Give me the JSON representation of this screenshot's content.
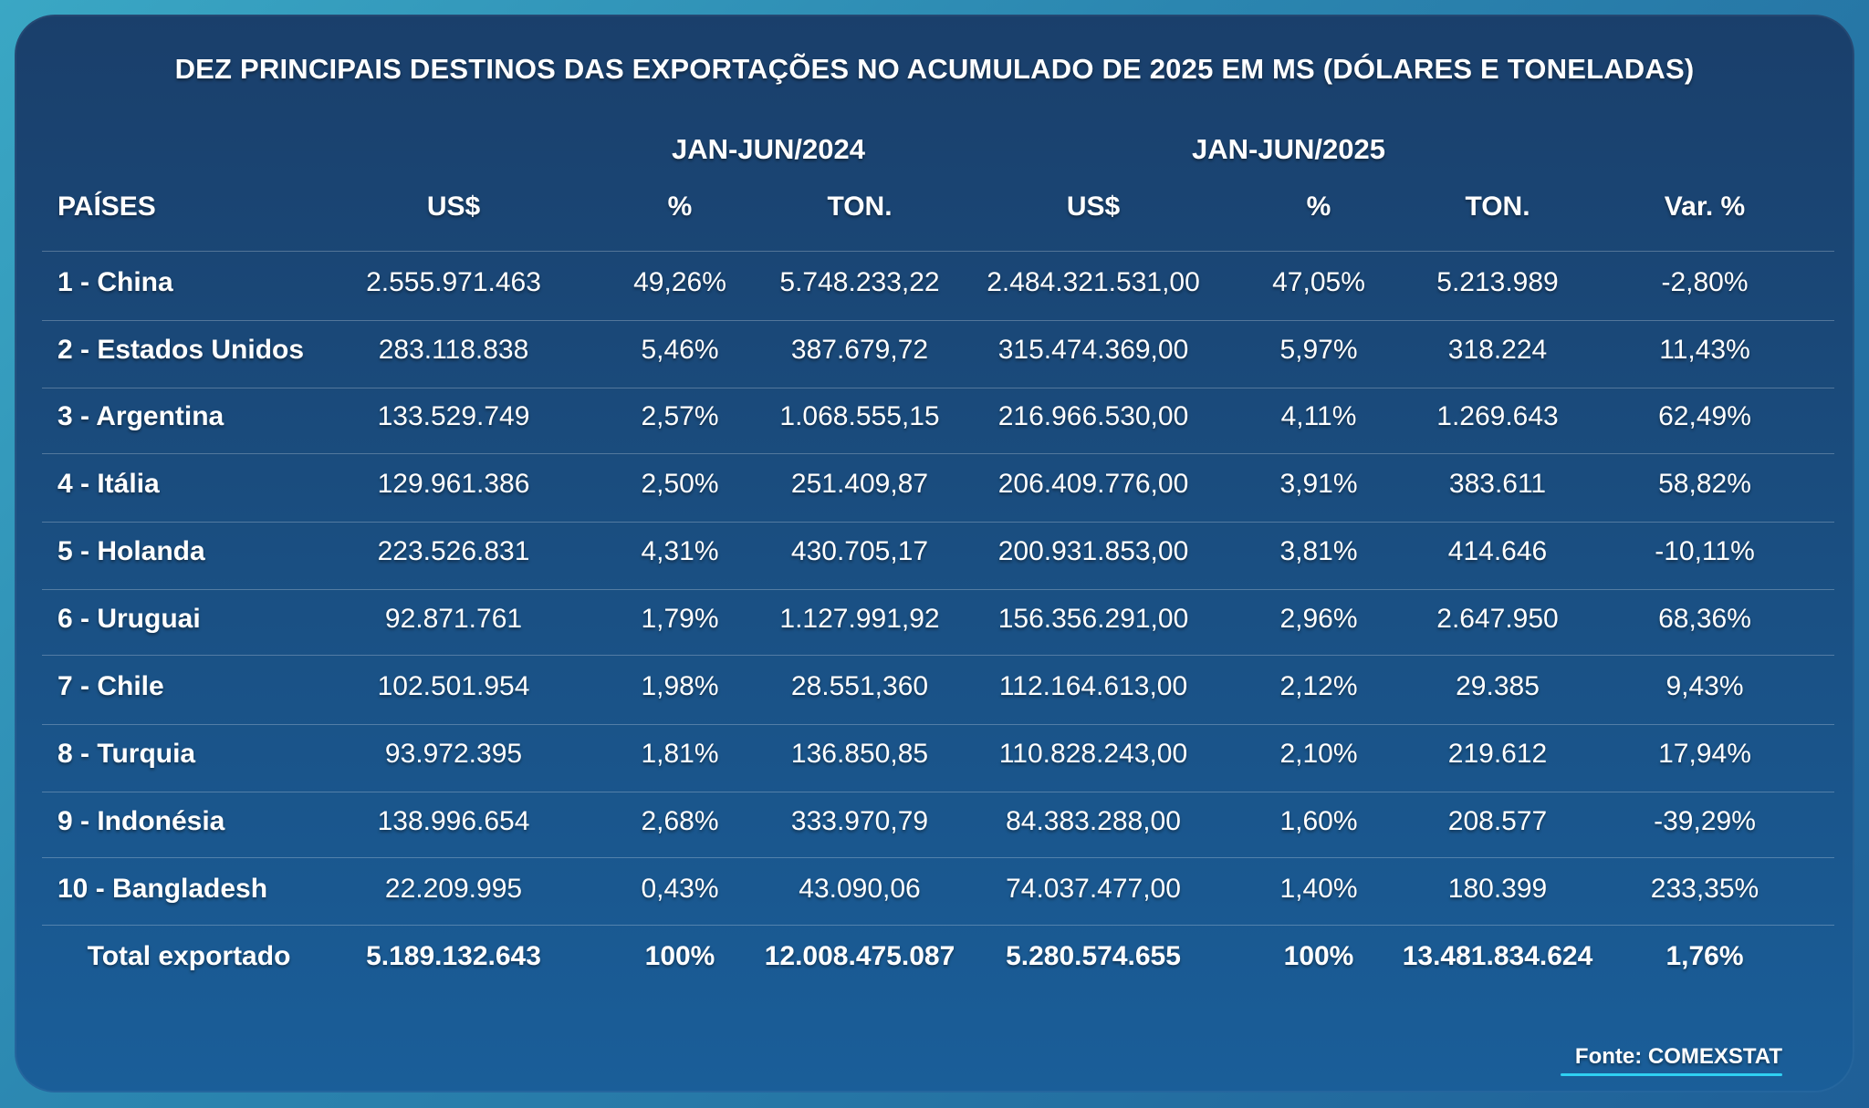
{
  "chart_data": {
    "type": "table",
    "title": "DEZ PRINCIPAIS DESTINOS DAS EXPORTAÇÕES NO ACUMULADO DE 2025 EM MS (DÓLARES E TONELADAS)",
    "period_2024": "JAN-JUN/2024",
    "period_2025": "JAN-JUN/2025",
    "headers": [
      "PAÍSES",
      "US$",
      "%",
      "TON.",
      "US$",
      "%",
      "TON.",
      "Var. %"
    ],
    "rows": [
      [
        "1 - China",
        "2.555.971.463",
        "49,26%",
        "5.748.233,22",
        "2.484.321.531,00",
        "47,05%",
        "5.213.989",
        "-2,80%"
      ],
      [
        "2 - Estados Unidos",
        "283.118.838",
        "5,46%",
        "387.679,72",
        "315.474.369,00",
        "5,97%",
        "318.224",
        "11,43%"
      ],
      [
        "3 - Argentina",
        "133.529.749",
        "2,57%",
        "1.068.555,15",
        "216.966.530,00",
        "4,11%",
        "1.269.643",
        "62,49%"
      ],
      [
        "4 - Itália",
        "129.961.386",
        "2,50%",
        "251.409,87",
        "206.409.776,00",
        "3,91%",
        "383.611",
        "58,82%"
      ],
      [
        "5 - Holanda",
        "223.526.831",
        "4,31%",
        "430.705,17",
        "200.931.853,00",
        "3,81%",
        "414.646",
        "-10,11%"
      ],
      [
        "6 - Uruguai",
        "92.871.761",
        "1,79%",
        "1.127.991,92",
        "156.356.291,00",
        "2,96%",
        "2.647.950",
        "68,36%"
      ],
      [
        "7 - Chile",
        "102.501.954",
        "1,98%",
        "28.551,360",
        "112.164.613,00",
        "2,12%",
        "29.385",
        "9,43%"
      ],
      [
        "8 - Turquia",
        "93.972.395",
        "1,81%",
        "136.850,85",
        "110.828.243,00",
        "2,10%",
        "219.612",
        "17,94%"
      ],
      [
        "9 - Indonésia",
        "138.996.654",
        "2,68%",
        "333.970,79",
        "84.383.288,00",
        "1,60%",
        "208.577",
        "-39,29%"
      ],
      [
        "10 - Bangladesh",
        "22.209.995",
        "0,43%",
        "43.090,06",
        "74.037.477,00",
        "1,40%",
        "180.399",
        "233,35%"
      ]
    ],
    "total": [
      "Total exportado",
      "5.189.132.643",
      "100%",
      "12.008.475.087",
      "5.280.574.655",
      "100%",
      "13.481.834.624",
      "1,76%"
    ]
  },
  "source": "Fonte: COMEXSTAT"
}
